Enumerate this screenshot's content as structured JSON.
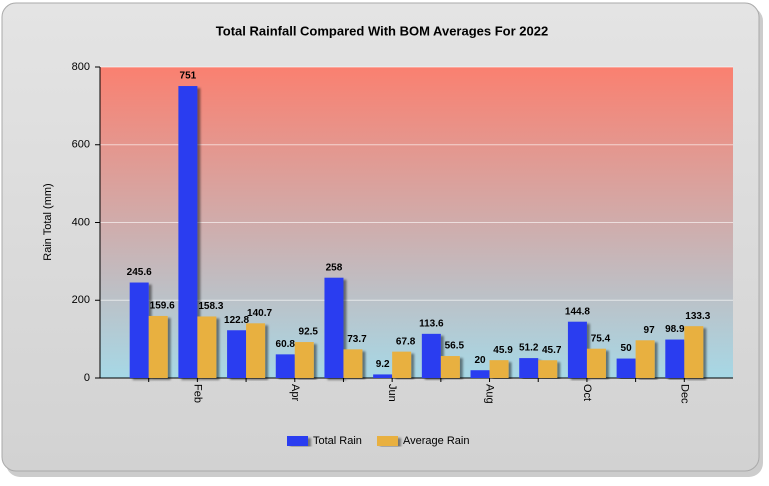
{
  "chart_data": {
    "type": "bar",
    "title": "Total Rainfall Compared With BOM Averages For 2022",
    "y_label": "Rain Total (mm)",
    "categories": [
      null,
      "Feb",
      null,
      "Apr",
      null,
      "Jun",
      null,
      "Aug",
      null,
      "Oct",
      null,
      "Dec"
    ],
    "series": [
      {
        "name": "Total Rain",
        "color": "#2a3cf0",
        "values": [
          245.6,
          751,
          122.8,
          60.8,
          258,
          9.2,
          113.6,
          20,
          51.2,
          144.8,
          50,
          98.9
        ]
      },
      {
        "name": "Average Rain",
        "color": "#e8b040",
        "values": [
          159.6,
          158.3,
          140.7,
          92.5,
          73.7,
          67.8,
          56.5,
          45.9,
          45.7,
          75.4,
          97,
          133.3
        ]
      }
    ],
    "ylim": [
      0,
      800
    ],
    "yticks": [
      0,
      200,
      400,
      600,
      800
    ],
    "grid": true,
    "legend": "bottom"
  }
}
